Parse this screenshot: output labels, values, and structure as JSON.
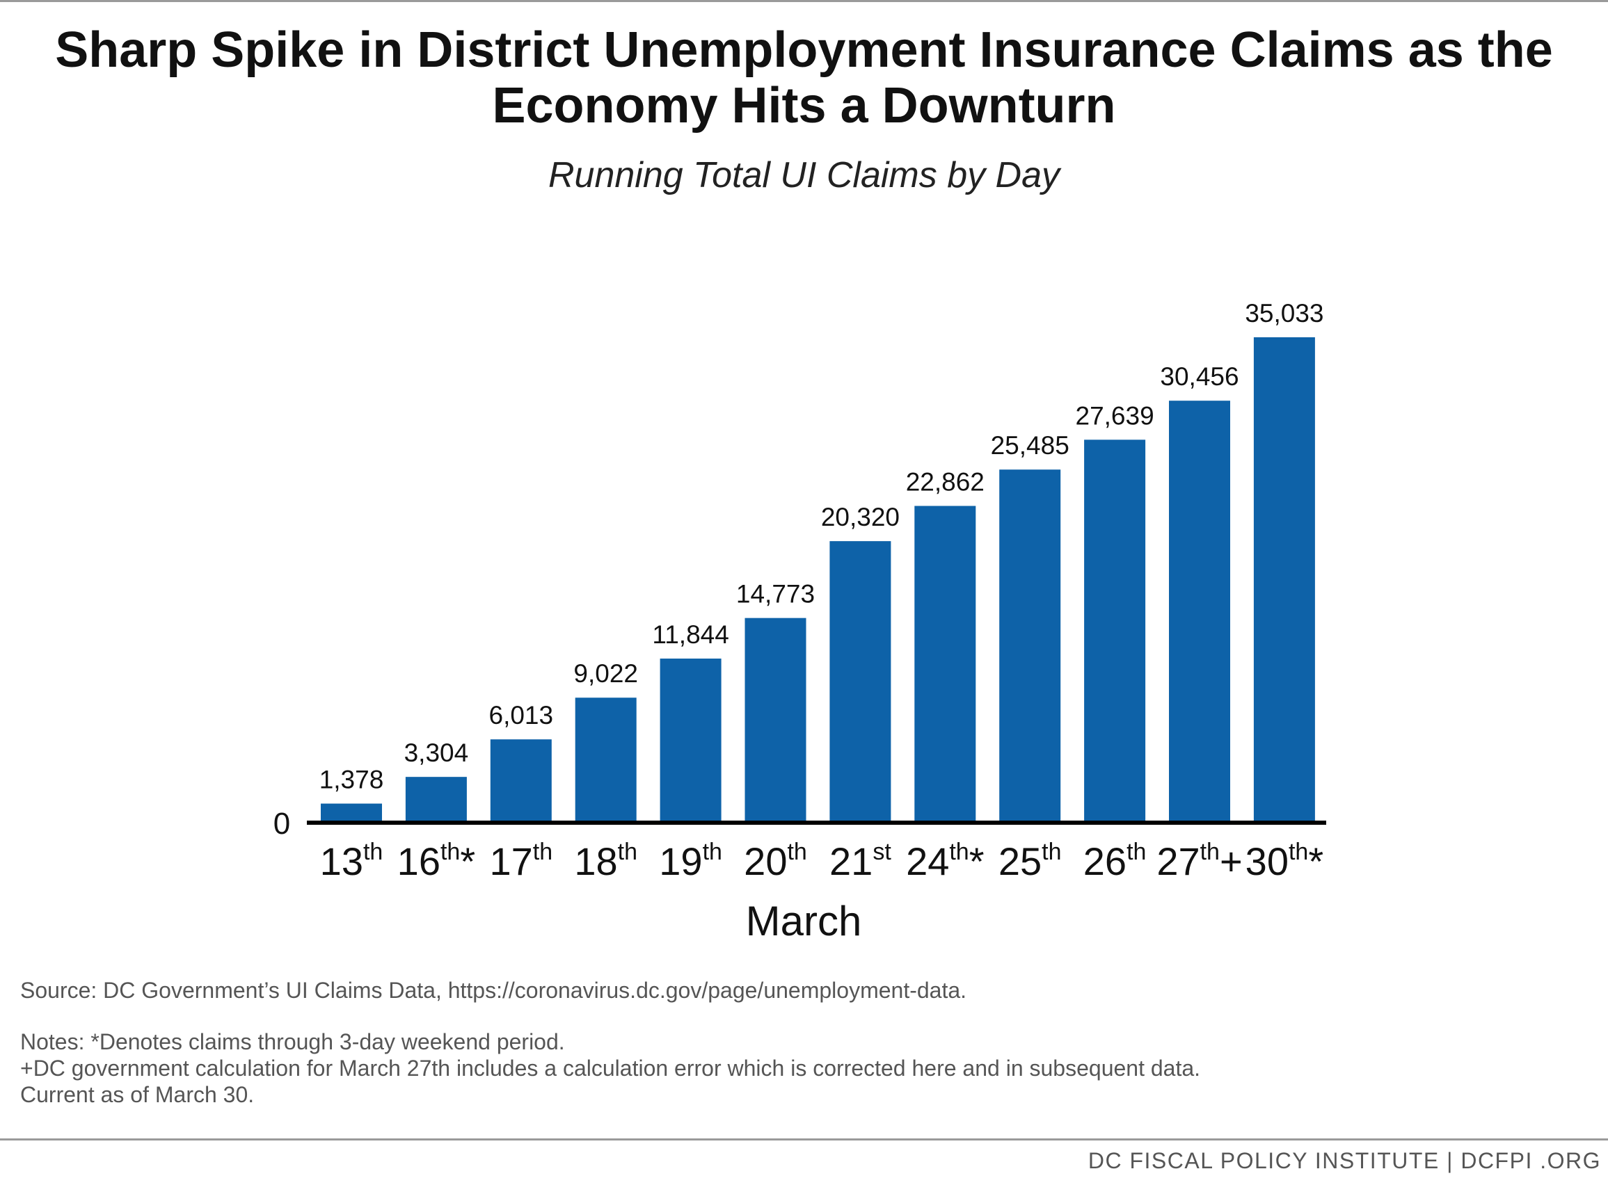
{
  "title": "Sharp Spike in District Unemployment Insurance Claims as the Economy Hits a Downturn",
  "subtitle": "Running Total UI Claims by Day",
  "chart_data": {
    "type": "bar",
    "categories": [
      {
        "day": "13",
        "suffix": "th",
        "mark": ""
      },
      {
        "day": "16",
        "suffix": "th",
        "mark": "*"
      },
      {
        "day": "17",
        "suffix": "th",
        "mark": ""
      },
      {
        "day": "18",
        "suffix": "th",
        "mark": ""
      },
      {
        "day": "19",
        "suffix": "th",
        "mark": ""
      },
      {
        "day": "20",
        "suffix": "th",
        "mark": ""
      },
      {
        "day": "21",
        "suffix": "st",
        "mark": ""
      },
      {
        "day": "24",
        "suffix": "th",
        "mark": "*"
      },
      {
        "day": "25",
        "suffix": "th",
        "mark": ""
      },
      {
        "day": "26",
        "suffix": "th",
        "mark": ""
      },
      {
        "day": "27",
        "suffix": "th",
        "mark": "+"
      },
      {
        "day": "30",
        "suffix": "th",
        "mark": "*"
      }
    ],
    "values": [
      1378,
      3304,
      6013,
      9022,
      11844,
      14773,
      20320,
      22862,
      25485,
      27639,
      30456,
      35033
    ],
    "data_labels": [
      "1,378",
      "3,304",
      "6,013",
      "9,022",
      "11,844",
      "14,773",
      "20,320",
      "22,862",
      "25,485",
      "27,639",
      "30,456",
      "35,033"
    ],
    "xlabel": "March",
    "ylabel": "",
    "y_tick_label": "0",
    "ylim": [
      0,
      35033
    ],
    "grid": false,
    "bar_color": "#0e62a8"
  },
  "notes": {
    "source": "Source: DC Government’s UI Claims Data, https://coronavirus.dc.gov/page/unemployment-data.",
    "line1": "Notes: *Denotes claims through 3-day weekend period.",
    "line2": "+DC government calculation for March 27th includes a calculation error which is corrected here and in subsequent data.",
    "line3": "Current as of March 30."
  },
  "footer": "DC FISCAL POLICY INSTITUTE  |  DCFPI .ORG"
}
